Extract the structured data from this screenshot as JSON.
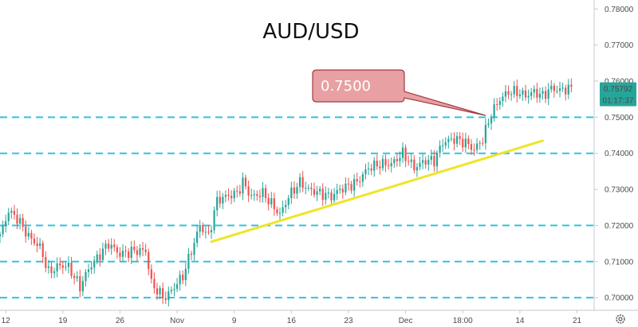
{
  "chart_data": {
    "type": "candlestick",
    "title": "AUD/USD",
    "y_ticks": [
      "0.70000",
      "0.71000",
      "0.72000",
      "0.73000",
      "0.74000",
      "0.75000",
      "0.76000",
      "0.77000",
      "0.78000"
    ],
    "y_tick_values": [
      0.7,
      0.71,
      0.72,
      0.73,
      0.74,
      0.75,
      0.76,
      0.77,
      0.78
    ],
    "ylim": [
      0.6965,
      0.7825
    ],
    "x_ticks": [
      "12",
      "19",
      "26",
      "Nov",
      "9",
      "16",
      "23",
      "Dec",
      "18:00",
      "14",
      "21"
    ],
    "x_tick_index": [
      2,
      22,
      42,
      62,
      82,
      102,
      122,
      142,
      162,
      182,
      202
    ],
    "xlim": [
      0,
      208
    ],
    "price_label": "0.75792",
    "last_price": 0.75792,
    "countdown_label": "01:17:37",
    "annotation": {
      "text": "0.7500",
      "target_index": 170,
      "target_price": 0.7505
    },
    "horizontal_levels": [
      0.7,
      0.71,
      0.72,
      0.74,
      0.75
    ],
    "trendline": {
      "from": {
        "index": 74,
        "price": 0.7155
      },
      "to": {
        "index": 190,
        "price": 0.7435
      }
    },
    "anchors": [
      [
        0,
        0.717
      ],
      [
        3,
        0.724
      ],
      [
        6,
        0.722
      ],
      [
        10,
        0.717
      ],
      [
        14,
        0.714
      ],
      [
        17,
        0.707
      ],
      [
        21,
        0.709
      ],
      [
        24,
        0.7085
      ],
      [
        28,
        0.703
      ],
      [
        31,
        0.708
      ],
      [
        34,
        0.711
      ],
      [
        38,
        0.715
      ],
      [
        42,
        0.712
      ],
      [
        47,
        0.713
      ],
      [
        51,
        0.713
      ],
      [
        53,
        0.704
      ],
      [
        56,
        0.701
      ],
      [
        58,
        0.7
      ],
      [
        61,
        0.703
      ],
      [
        64,
        0.706
      ],
      [
        67,
        0.713
      ],
      [
        70,
        0.72
      ],
      [
        73,
        0.717
      ],
      [
        76,
        0.727
      ],
      [
        79,
        0.728
      ],
      [
        83,
        0.729
      ],
      [
        85,
        0.732
      ],
      [
        88,
        0.728
      ],
      [
        92,
        0.729
      ],
      [
        95,
        0.726
      ],
      [
        98,
        0.723
      ],
      [
        101,
        0.728
      ],
      [
        105,
        0.732
      ],
      [
        108,
        0.73
      ],
      [
        112,
        0.729
      ],
      [
        116,
        0.728
      ],
      [
        119,
        0.73
      ],
      [
        122,
        0.731
      ],
      [
        125,
        0.732
      ],
      [
        129,
        0.736
      ],
      [
        133,
        0.737
      ],
      [
        137,
        0.737
      ],
      [
        141,
        0.74
      ],
      [
        145,
        0.736
      ],
      [
        149,
        0.738
      ],
      [
        152,
        0.738
      ],
      [
        155,
        0.743
      ],
      [
        159,
        0.744
      ],
      [
        163,
        0.743
      ],
      [
        166,
        0.741
      ],
      [
        169,
        0.744
      ],
      [
        172,
        0.751
      ],
      [
        175,
        0.755
      ],
      [
        178,
        0.757
      ],
      [
        181,
        0.757
      ],
      [
        184,
        0.756
      ],
      [
        187,
        0.757
      ],
      [
        190,
        0.756
      ],
      [
        193,
        0.758
      ],
      [
        196,
        0.7575
      ],
      [
        199,
        0.758
      ],
      [
        200,
        0.7579
      ]
    ],
    "colors": {
      "up": "#26a69a",
      "down": "#ef5350",
      "level_line": "#2ec4e0",
      "trendline": "#f0e427",
      "callout_fill": "#e8a0a2",
      "callout_stroke": "#a33a42",
      "callout_text": "#ffffff",
      "price_label_bg": "#26a69a"
    },
    "grid": false
  }
}
